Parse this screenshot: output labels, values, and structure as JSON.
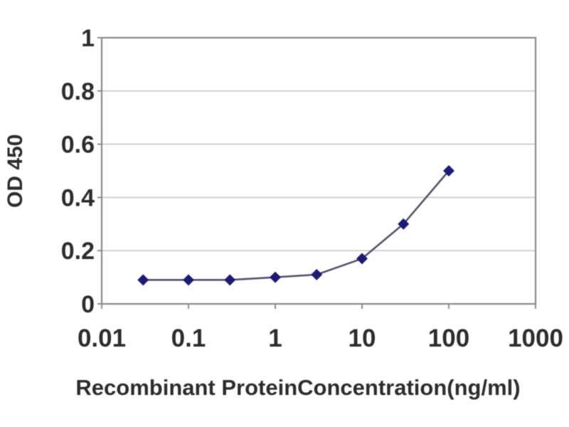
{
  "chart_data": {
    "type": "line",
    "title": "",
    "xlabel": "Recombinant ProteinConcentration(ng/ml)",
    "ylabel": "OD 450",
    "x_scale": "log",
    "x": [
      0.03,
      0.1,
      0.3,
      1,
      3,
      10,
      30,
      100
    ],
    "y": [
      0.09,
      0.09,
      0.09,
      0.1,
      0.11,
      0.17,
      0.3,
      0.5
    ],
    "xlim": [
      0.01,
      1000
    ],
    "ylim": [
      0,
      1
    ],
    "xticks": [
      "0.01",
      "0.1",
      "1",
      "10",
      "100",
      "1000"
    ],
    "xtick_values": [
      0.01,
      0.1,
      1,
      10,
      100,
      1000
    ],
    "yticks": [
      "0",
      "0.2",
      "0.4",
      "0.6",
      "0.8",
      "1"
    ],
    "ytick_values": [
      0,
      0.2,
      0.4,
      0.6,
      0.8,
      1
    ],
    "grid": "horizontal",
    "legend": "none",
    "marker": "diamond",
    "colors": {
      "marker": "#1c1c78",
      "line": "#52526e",
      "grid": "#c8c8c8",
      "frame": "#8a8a8a",
      "text": "#2d2d2d",
      "background": "#ffffff"
    }
  }
}
